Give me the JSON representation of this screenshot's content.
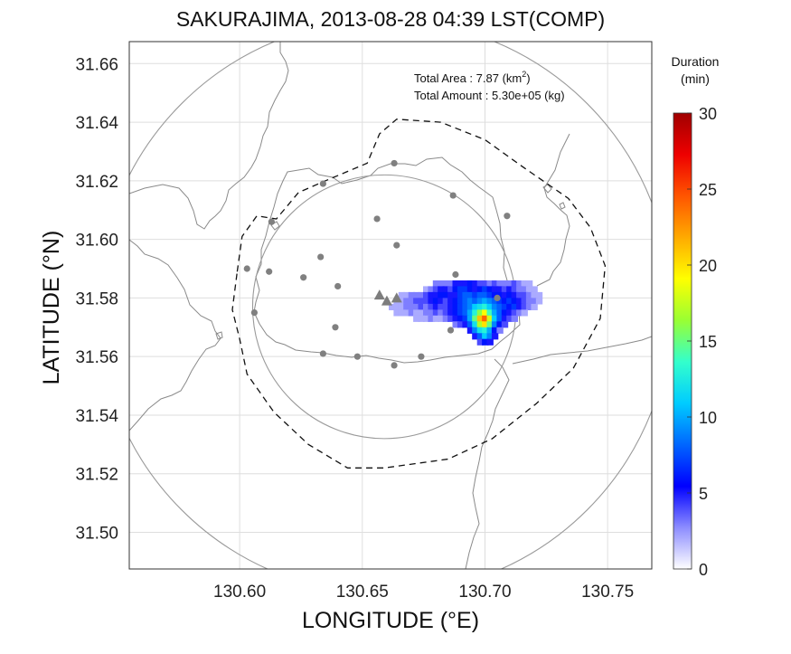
{
  "chart_data": {
    "type": "heatmap",
    "title": "SAKURAJIMA, 2013-08-28 04:39 LST(COMP)",
    "xlabel": "LONGITUDE (°E)",
    "ylabel": "LATITUDE (°N)",
    "xlim": [
      130.555,
      130.768
    ],
    "ylim": [
      31.4875,
      31.6675
    ],
    "x_ticks": [
      "130.60",
      "130.65",
      "130.70",
      "130.75"
    ],
    "y_ticks": [
      "31.50",
      "31.52",
      "31.54",
      "31.56",
      "31.58",
      "31.60",
      "31.62",
      "31.64",
      "31.66"
    ],
    "grid": true,
    "annotations": {
      "total_area_label": "Total Area   : 7.87 (km",
      "total_area_sup": "2",
      "total_area_close": ")",
      "total_amount": "Total Amount : 5.30e+05 (kg)"
    },
    "colorbar": {
      "title_line1": "Duration",
      "title_line2": "(min)",
      "ticks": [
        "0",
        "5",
        "10",
        "15",
        "20",
        "25",
        "30"
      ],
      "min": 0,
      "max": 30,
      "colors": [
        "#ffffff",
        "#8c8cff",
        "#0000ff",
        "#0066ff",
        "#00ccff",
        "#33ffcc",
        "#99ff33",
        "#ffff00",
        "#ffaa00",
        "#ff5500",
        "#ee0000",
        "#a00000"
      ]
    },
    "range_circles_center": [
      130.659,
      31.577
    ],
    "range_circle_radii_deg_lat": [
      0.045,
      0.098
    ],
    "vent_triangles": [
      [
        130.657,
        31.581
      ],
      [
        130.66,
        31.579
      ],
      [
        130.664,
        31.58
      ]
    ],
    "stations": [
      [
        130.663,
        31.626
      ],
      [
        130.634,
        31.619
      ],
      [
        130.687,
        31.615
      ],
      [
        130.613,
        31.606
      ],
      [
        130.656,
        31.607
      ],
      [
        130.709,
        31.608
      ],
      [
        130.664,
        31.598
      ],
      [
        130.603,
        31.59
      ],
      [
        130.633,
        31.594
      ],
      [
        130.612,
        31.589
      ],
      [
        130.626,
        31.587
      ],
      [
        130.64,
        31.584
      ],
      [
        130.688,
        31.588
      ],
      [
        130.705,
        31.58
      ],
      [
        130.606,
        31.575
      ],
      [
        130.639,
        31.57
      ],
      [
        130.686,
        31.569
      ],
      [
        130.634,
        31.561
      ],
      [
        130.648,
        31.56
      ],
      [
        130.674,
        31.56
      ],
      [
        130.663,
        31.557
      ]
    ],
    "dashed_boundary": [
      [
        130.599,
        31.589
      ],
      [
        130.601,
        31.601
      ],
      [
        130.607,
        31.608
      ],
      [
        130.615,
        31.607
      ],
      [
        130.624,
        31.616
      ],
      [
        130.635,
        31.62
      ],
      [
        130.652,
        31.626
      ],
      [
        130.657,
        31.636
      ],
      [
        130.664,
        31.641
      ],
      [
        130.682,
        31.64
      ],
      [
        130.7,
        31.634
      ],
      [
        130.715,
        31.625
      ],
      [
        130.734,
        31.614
      ],
      [
        130.743,
        31.604
      ],
      [
        130.749,
        31.591
      ],
      [
        130.747,
        31.573
      ],
      [
        130.736,
        31.556
      ],
      [
        130.721,
        31.544
      ],
      [
        130.703,
        31.532
      ],
      [
        130.685,
        31.525
      ],
      [
        130.659,
        31.522
      ],
      [
        130.644,
        31.522
      ],
      [
        130.628,
        31.53
      ],
      [
        130.614,
        31.541
      ],
      [
        130.603,
        31.554
      ],
      [
        130.6,
        31.566
      ],
      [
        130.597,
        31.576
      ],
      [
        130.599,
        31.589
      ]
    ],
    "cells_step": [
      0.0025,
      0.002
    ],
    "cells": [
      [
        130.68,
        31.585,
        3
      ],
      [
        130.682,
        31.585,
        3
      ],
      [
        130.684,
        31.585,
        3
      ],
      [
        130.686,
        31.585,
        3
      ],
      [
        130.688,
        31.585,
        5
      ],
      [
        130.69,
        31.585,
        5
      ],
      [
        130.692,
        31.585,
        5
      ],
      [
        130.694,
        31.585,
        6
      ],
      [
        130.696,
        31.585,
        5
      ],
      [
        130.698,
        31.585,
        4
      ],
      [
        130.7,
        31.585,
        4
      ],
      [
        130.702,
        31.585,
        3
      ],
      [
        130.704,
        31.585,
        4
      ],
      [
        130.706,
        31.585,
        3
      ],
      [
        130.708,
        31.585,
        3
      ],
      [
        130.71,
        31.585,
        3
      ],
      [
        130.712,
        31.585,
        4
      ],
      [
        130.714,
        31.585,
        3
      ],
      [
        130.716,
        31.585,
        2
      ],
      [
        130.718,
        31.585,
        2
      ],
      [
        130.676,
        31.583,
        2
      ],
      [
        130.678,
        31.583,
        3
      ],
      [
        130.68,
        31.583,
        4
      ],
      [
        130.682,
        31.583,
        5
      ],
      [
        130.684,
        31.583,
        5
      ],
      [
        130.686,
        31.583,
        4
      ],
      [
        130.688,
        31.583,
        6
      ],
      [
        130.69,
        31.583,
        7
      ],
      [
        130.692,
        31.583,
        7
      ],
      [
        130.694,
        31.583,
        6
      ],
      [
        130.696,
        31.583,
        5
      ],
      [
        130.698,
        31.583,
        6
      ],
      [
        130.7,
        31.583,
        7
      ],
      [
        130.702,
        31.583,
        6
      ],
      [
        130.704,
        31.583,
        5
      ],
      [
        130.706,
        31.583,
        5
      ],
      [
        130.708,
        31.583,
        4
      ],
      [
        130.71,
        31.583,
        5
      ],
      [
        130.712,
        31.583,
        4
      ],
      [
        130.714,
        31.583,
        3
      ],
      [
        130.716,
        31.583,
        3
      ],
      [
        130.718,
        31.583,
        2
      ],
      [
        130.72,
        31.583,
        2
      ],
      [
        130.666,
        31.581,
        2
      ],
      [
        130.668,
        31.581,
        2
      ],
      [
        130.67,
        31.581,
        3
      ],
      [
        130.672,
        31.581,
        3
      ],
      [
        130.674,
        31.581,
        3
      ],
      [
        130.676,
        31.581,
        4
      ],
      [
        130.678,
        31.581,
        5
      ],
      [
        130.68,
        31.581,
        5
      ],
      [
        130.682,
        31.581,
        6
      ],
      [
        130.684,
        31.581,
        6
      ],
      [
        130.686,
        31.581,
        5
      ],
      [
        130.688,
        31.581,
        5
      ],
      [
        130.69,
        31.581,
        7
      ],
      [
        130.692,
        31.581,
        8
      ],
      [
        130.694,
        31.581,
        8
      ],
      [
        130.696,
        31.581,
        7
      ],
      [
        130.698,
        31.581,
        8
      ],
      [
        130.7,
        31.581,
        8
      ],
      [
        130.702,
        31.581,
        7
      ],
      [
        130.704,
        31.581,
        6
      ],
      [
        130.706,
        31.581,
        6
      ],
      [
        130.708,
        31.581,
        5
      ],
      [
        130.71,
        31.581,
        6
      ],
      [
        130.712,
        31.581,
        5
      ],
      [
        130.714,
        31.581,
        4
      ],
      [
        130.716,
        31.581,
        4
      ],
      [
        130.718,
        31.581,
        3
      ],
      [
        130.72,
        31.581,
        2
      ],
      [
        130.722,
        31.581,
        2
      ],
      [
        130.664,
        31.579,
        2
      ],
      [
        130.666,
        31.579,
        2
      ],
      [
        130.668,
        31.579,
        3
      ],
      [
        130.67,
        31.579,
        3
      ],
      [
        130.672,
        31.579,
        4
      ],
      [
        130.674,
        31.579,
        4
      ],
      [
        130.676,
        31.579,
        4
      ],
      [
        130.678,
        31.579,
        5
      ],
      [
        130.68,
        31.579,
        6
      ],
      [
        130.682,
        31.579,
        5
      ],
      [
        130.684,
        31.579,
        4
      ],
      [
        130.686,
        31.579,
        5
      ],
      [
        130.688,
        31.579,
        6
      ],
      [
        130.69,
        31.579,
        7
      ],
      [
        130.692,
        31.579,
        8
      ],
      [
        130.694,
        31.579,
        9
      ],
      [
        130.696,
        31.579,
        8
      ],
      [
        130.698,
        31.579,
        9
      ],
      [
        130.7,
        31.579,
        10
      ],
      [
        130.702,
        31.579,
        9
      ],
      [
        130.704,
        31.579,
        8
      ],
      [
        130.706,
        31.579,
        7
      ],
      [
        130.708,
        31.579,
        6
      ],
      [
        130.71,
        31.579,
        7
      ],
      [
        130.712,
        31.579,
        6
      ],
      [
        130.714,
        31.579,
        5
      ],
      [
        130.716,
        31.579,
        4
      ],
      [
        130.718,
        31.579,
        3
      ],
      [
        130.72,
        31.579,
        3
      ],
      [
        130.722,
        31.579,
        2
      ],
      [
        130.662,
        31.577,
        2
      ],
      [
        130.664,
        31.577,
        2
      ],
      [
        130.666,
        31.577,
        2
      ],
      [
        130.668,
        31.577,
        3
      ],
      [
        130.67,
        31.577,
        3
      ],
      [
        130.672,
        31.577,
        3
      ],
      [
        130.674,
        31.577,
        4
      ],
      [
        130.676,
        31.577,
        3
      ],
      [
        130.678,
        31.577,
        4
      ],
      [
        130.68,
        31.577,
        5
      ],
      [
        130.682,
        31.577,
        4
      ],
      [
        130.684,
        31.577,
        4
      ],
      [
        130.686,
        31.577,
        5
      ],
      [
        130.688,
        31.577,
        6
      ],
      [
        130.69,
        31.577,
        7
      ],
      [
        130.692,
        31.577,
        8
      ],
      [
        130.694,
        31.577,
        9
      ],
      [
        130.696,
        31.577,
        11
      ],
      [
        130.698,
        31.577,
        12
      ],
      [
        130.7,
        31.577,
        13
      ],
      [
        130.702,
        31.577,
        11
      ],
      [
        130.704,
        31.577,
        9
      ],
      [
        130.706,
        31.577,
        8
      ],
      [
        130.708,
        31.577,
        7
      ],
      [
        130.71,
        31.577,
        6
      ],
      [
        130.712,
        31.577,
        7
      ],
      [
        130.714,
        31.577,
        5
      ],
      [
        130.716,
        31.577,
        4
      ],
      [
        130.718,
        31.577,
        3
      ],
      [
        130.72,
        31.577,
        2
      ],
      [
        130.664,
        31.575,
        2
      ],
      [
        130.666,
        31.575,
        2
      ],
      [
        130.668,
        31.575,
        2
      ],
      [
        130.67,
        31.575,
        3
      ],
      [
        130.672,
        31.575,
        2
      ],
      [
        130.674,
        31.575,
        2
      ],
      [
        130.676,
        31.575,
        3
      ],
      [
        130.678,
        31.575,
        3
      ],
      [
        130.68,
        31.575,
        4
      ],
      [
        130.682,
        31.575,
        3
      ],
      [
        130.684,
        31.575,
        4
      ],
      [
        130.686,
        31.575,
        5
      ],
      [
        130.688,
        31.575,
        6
      ],
      [
        130.69,
        31.575,
        7
      ],
      [
        130.692,
        31.575,
        8
      ],
      [
        130.694,
        31.575,
        10
      ],
      [
        130.696,
        31.575,
        13
      ],
      [
        130.698,
        31.575,
        16
      ],
      [
        130.7,
        31.575,
        19
      ],
      [
        130.702,
        31.575,
        14
      ],
      [
        130.704,
        31.575,
        10
      ],
      [
        130.706,
        31.575,
        8
      ],
      [
        130.708,
        31.575,
        6
      ],
      [
        130.71,
        31.575,
        5
      ],
      [
        130.712,
        31.575,
        4
      ],
      [
        130.714,
        31.575,
        3
      ],
      [
        130.716,
        31.575,
        2
      ],
      [
        130.672,
        31.573,
        2
      ],
      [
        130.674,
        31.573,
        2
      ],
      [
        130.676,
        31.573,
        2
      ],
      [
        130.678,
        31.573,
        3
      ],
      [
        130.68,
        31.573,
        2
      ],
      [
        130.682,
        31.573,
        2
      ],
      [
        130.684,
        31.573,
        3
      ],
      [
        130.686,
        31.573,
        4
      ],
      [
        130.688,
        31.573,
        5
      ],
      [
        130.69,
        31.573,
        6
      ],
      [
        130.692,
        31.573,
        7
      ],
      [
        130.694,
        31.573,
        10
      ],
      [
        130.696,
        31.573,
        15
      ],
      [
        130.698,
        31.573,
        21
      ],
      [
        130.7,
        31.573,
        24
      ],
      [
        130.702,
        31.573,
        18
      ],
      [
        130.704,
        31.573,
        11
      ],
      [
        130.706,
        31.573,
        8
      ],
      [
        130.708,
        31.573,
        5
      ],
      [
        130.71,
        31.573,
        4
      ],
      [
        130.712,
        31.573,
        3
      ],
      [
        130.688,
        31.571,
        3
      ],
      [
        130.69,
        31.571,
        4
      ],
      [
        130.692,
        31.571,
        5
      ],
      [
        130.694,
        31.571,
        8
      ],
      [
        130.696,
        31.571,
        12
      ],
      [
        130.698,
        31.571,
        17
      ],
      [
        130.7,
        31.571,
        20
      ],
      [
        130.702,
        31.571,
        15
      ],
      [
        130.704,
        31.571,
        9
      ],
      [
        130.706,
        31.571,
        6
      ],
      [
        130.708,
        31.571,
        4
      ],
      [
        130.694,
        31.569,
        5
      ],
      [
        130.696,
        31.569,
        9
      ],
      [
        130.698,
        31.569,
        12
      ],
      [
        130.7,
        31.569,
        13
      ],
      [
        130.702,
        31.569,
        10
      ],
      [
        130.704,
        31.569,
        6
      ],
      [
        130.706,
        31.569,
        3
      ],
      [
        130.696,
        31.567,
        5
      ],
      [
        130.698,
        31.567,
        8
      ],
      [
        130.7,
        31.567,
        11
      ],
      [
        130.702,
        31.567,
        9
      ],
      [
        130.704,
        31.567,
        5
      ],
      [
        130.698,
        31.565,
        4
      ],
      [
        130.7,
        31.565,
        6
      ],
      [
        130.702,
        31.565,
        5
      ]
    ]
  }
}
